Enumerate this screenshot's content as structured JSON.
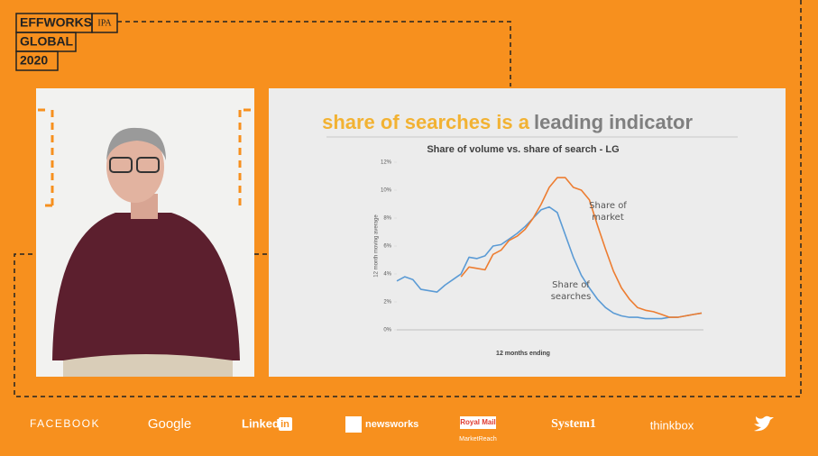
{
  "header": {
    "logo_line1": "EFFWORKS",
    "logo_badge": "IPA",
    "logo_line2": "GLOBAL",
    "logo_line3": "2020"
  },
  "slide": {
    "title_part1": "share of searches is a",
    "title_part2": "leading indicator"
  },
  "chart_data": {
    "type": "line",
    "title": "Share of volume vs. share of search - LG",
    "y_label": "12 month moving average",
    "x_label": "12 months ending",
    "categories": [
      null,
      null,
      null,
      null,
      null,
      null,
      null,
      null,
      null,
      null,
      null,
      null,
      null,
      null,
      null,
      null,
      null,
      null,
      null,
      null,
      null,
      null,
      null,
      null,
      null,
      null,
      null,
      null,
      null,
      null,
      null,
      null,
      null,
      null,
      null,
      null,
      null,
      null,
      null
    ],
    "series": [
      {
        "name": "Share of searches",
        "color": "#5b9bd5",
        "values": [
          3.5,
          3.8,
          3.6,
          2.9,
          2.8,
          2.7,
          3.2,
          3.6,
          4.0,
          5.2,
          5.1,
          5.3,
          6.0,
          6.1,
          6.5,
          6.9,
          7.4,
          8.0,
          8.6,
          8.8,
          8.4,
          6.8,
          5.2,
          3.9,
          3.0,
          2.2,
          1.6,
          1.2,
          1.0,
          0.9,
          0.9,
          0.8,
          0.8,
          0.8,
          0.9,
          0.9,
          1.0,
          1.1,
          1.2
        ]
      },
      {
        "name": "Share of market",
        "color": "#ed7d31",
        "values": [
          null,
          null,
          null,
          null,
          null,
          null,
          null,
          null,
          3.8,
          4.5,
          4.4,
          4.3,
          5.4,
          5.7,
          6.4,
          6.7,
          7.2,
          8.0,
          9.0,
          10.2,
          10.9,
          10.9,
          10.2,
          10.0,
          9.3,
          7.5,
          5.8,
          4.2,
          3.0,
          2.2,
          1.6,
          1.4,
          1.3,
          1.1,
          0.9,
          0.9,
          1.0,
          1.1,
          1.2
        ]
      }
    ],
    "ylim": [
      0,
      12
    ],
    "yticks": [
      {
        "value": 0,
        "label": "0%"
      },
      {
        "value": 2,
        "label": "2%"
      },
      {
        "value": 4,
        "label": "4%"
      },
      {
        "value": 6,
        "label": "6%"
      },
      {
        "value": 8,
        "label": "8%"
      },
      {
        "value": 10,
        "label": "10%"
      },
      {
        "value": 12,
        "label": "12%"
      }
    ],
    "grid": false
  },
  "sponsors": [
    "FACEBOOK",
    "Google",
    "Linked",
    "in",
    "newsworks",
    "Royal Mail",
    "MarketReach",
    "System1",
    "thinkbox"
  ]
}
